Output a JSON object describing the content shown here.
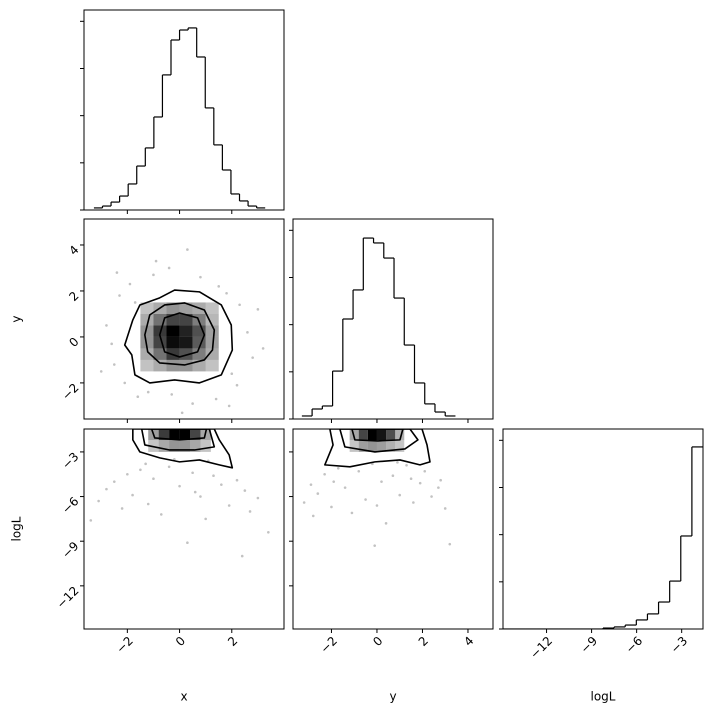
{
  "chart_data": [
    {
      "type": "histogram",
      "color": "#000000",
      "bins": [
        -3.28,
        -2.952,
        -2.624,
        -2.296,
        -1.968,
        -1.64,
        -1.312,
        -0.984,
        -0.656,
        -0.328,
        0,
        0.328,
        0.656,
        0.984,
        1.312,
        1.64,
        1.968,
        2.296,
        2.624,
        2.952,
        3.28
      ],
      "values": [
        11,
        21,
        42,
        74,
        138,
        233,
        329,
        493,
        716,
        901,
        954,
        965,
        811,
        541,
        345,
        212,
        85,
        48,
        21,
        11
      ],
      "xlim": [
        -3.66,
        4.0
      ],
      "ylim": [
        0,
        1060
      ],
      "xticks": [
        -2,
        0,
        2
      ],
      "yticks": [
        0,
        250,
        500,
        750,
        1000
      ]
    },
    {
      "type": "scatter",
      "color": "#000000",
      "ylabel": "y",
      "x": [
        -2.8,
        -2.5,
        -2.3,
        -2.6,
        -1.9,
        -2.1,
        -1.6,
        -1.0,
        -0.4,
        0.3,
        0.8,
        1.5,
        2.3,
        2.6,
        2.8,
        2.2,
        1.4,
        0.5,
        -0.3,
        -1.2,
        3.0,
        -3.0,
        1.9,
        -1.7,
        1.8,
        2.0,
        -2.4,
        0.1,
        3.2,
        -0.9
      ],
      "y": [
        0.5,
        -1.2,
        1.8,
        -0.3,
        2.3,
        -2.0,
        -2.6,
        2.7,
        3.0,
        3.8,
        2.6,
        2.2,
        1.4,
        0.2,
        -0.9,
        -2.1,
        -2.7,
        -2.9,
        -2.5,
        -2.4,
        1.2,
        -1.5,
        -3.0,
        1.5,
        1.9,
        -1.6,
        2.8,
        -3.3,
        -0.5,
        3.3
      ],
      "density": {
        "xbins": [
          -1.5,
          -1.0,
          -0.5,
          0,
          0.5,
          1.0,
          1.5
        ],
        "ybins": [
          -1.5,
          -1.0,
          -0.5,
          0,
          0.5,
          1.0,
          1.5
        ],
        "counts": [
          [
            2,
            4,
            6,
            6,
            4,
            2
          ],
          [
            4,
            9,
            14,
            12,
            8,
            4
          ],
          [
            6,
            13,
            18,
            17,
            11,
            5
          ],
          [
            6,
            14,
            19,
            16,
            12,
            5
          ],
          [
            4,
            9,
            13,
            13,
            8,
            3
          ],
          [
            2,
            4,
            6,
            5,
            4,
            2
          ]
        ]
      },
      "contours": [
        {
          "x": [
            -2.1,
            -1.79,
            -1.52,
            -0.76,
            -0.19,
            0.76,
            1.6,
            1.98,
            2.02,
            1.6,
            0.76,
            -0.19,
            -1.14,
            -1.71,
            -1.83
          ],
          "y": [
            -0.35,
            0.74,
            1.39,
            1.7,
            2.04,
            1.96,
            1.39,
            0.52,
            -0.57,
            -1.65,
            -2.0,
            -1.87,
            -2.0,
            -1.65,
            -0.78
          ]
        },
        {
          "x": [
            -1.33,
            -1.14,
            -0.57,
            0.19,
            0.95,
            1.33,
            1.26,
            0.95,
            0.19,
            -0.76,
            -1.22
          ],
          "y": [
            0.09,
            0.96,
            1.39,
            1.48,
            1.17,
            0.3,
            -0.57,
            -1.0,
            -1.22,
            -1.13,
            -0.65
          ]
        },
        {
          "x": [
            -0.76,
            -0.57,
            0,
            0.69,
            0.95,
            0.69,
            0,
            -0.57
          ],
          "y": [
            0.09,
            0.83,
            1.04,
            0.83,
            0.09,
            -0.65,
            -0.87,
            -0.65
          ]
        }
      ],
      "xlim": [
        -3.66,
        4.0
      ],
      "ylim": [
        -3.57,
        5.13
      ],
      "xticks": [
        -2,
        0,
        2
      ],
      "yticks": [
        {
          "value": -2,
          "label": "−2"
        },
        {
          "value": 0,
          "label": "0"
        },
        {
          "value": 2,
          "label": "2"
        },
        {
          "value": 4,
          "label": "4"
        }
      ]
    },
    {
      "type": "histogram",
      "color": "#000000",
      "bins": [
        -3.3,
        -2.85,
        -2.4,
        -1.95,
        -1.5,
        -1.05,
        -0.6,
        -0.15,
        0.3,
        0.75,
        1.2,
        1.65,
        2.1,
        2.55,
        3.0,
        3.45
      ],
      "values": [
        16,
        53,
        69,
        254,
        530,
        684,
        959,
        933,
        853,
        641,
        392,
        191,
        80,
        37,
        16
      ],
      "xlim": [
        -3.69,
        5.1
      ],
      "ylim": [
        0,
        1060
      ],
      "xticks": [
        -2,
        0,
        2,
        4
      ],
      "yticks": [
        0,
        250,
        500,
        750,
        1000
      ]
    },
    {
      "type": "scatter",
      "color": "#000000",
      "xlabel": "x",
      "ylabel": "logL",
      "x": [
        -3.1,
        -2.8,
        -2.5,
        -2.2,
        -2.0,
        -1.8,
        -1.5,
        -1.2,
        -1.0,
        -0.7,
        -0.4,
        0,
        0.3,
        0.5,
        0.8,
        1.0,
        1.3,
        1.6,
        1.9,
        2.2,
        2.5,
        2.7,
        3.0,
        3.4,
        -3.4,
        1.1,
        -1.3,
        2.4,
        -0.2,
        0.6
      ],
      "y": [
        -6.3,
        -5.5,
        -5.0,
        -6.8,
        -4.5,
        -5.9,
        -4.2,
        -6.5,
        -4.8,
        -7.2,
        -4.0,
        -5.3,
        -9.1,
        -4.4,
        -6.0,
        -7.5,
        -4.6,
        -5.2,
        -6.6,
        -4.9,
        -5.6,
        -7.0,
        -6.1,
        -8.4,
        -7.6,
        -3.6,
        -3.8,
        -10.0,
        -3.5,
        -5.7
      ],
      "density": {
        "xbins": [
          -1.2,
          -0.8,
          -0.4,
          0,
          0.4,
          0.8,
          1.2
        ],
        "ybins": [
          -3.0,
          -2.2,
          -1.46
        ],
        "counts": [
          [
            2,
            5,
            7,
            7,
            5,
            2
          ],
          [
            6,
            16,
            22,
            22,
            15,
            5
          ]
        ]
      },
      "contours": [
        {
          "x": [
            -1.79,
            -1.79,
            -1.52,
            -0.76,
            0,
            0.76,
            1.52,
            2.02,
            1.9,
            1.52,
            1.33
          ],
          "y": [
            -1.46,
            -2.19,
            -3.0,
            -3.4,
            -3.67,
            -3.54,
            -3.87,
            -4.07,
            -3.2,
            -2.19,
            -1.46
          ]
        },
        {
          "x": [
            -1.45,
            -1.33,
            -0.38,
            0.57,
            1.33,
            1.14
          ],
          "y": [
            -1.46,
            -2.53,
            -2.87,
            -2.87,
            -2.66,
            -1.46
          ]
        },
        {
          "x": [
            -1.07,
            -0.95,
            0,
            0.95,
            1.03
          ],
          "y": [
            -1.46,
            -2.06,
            -2.19,
            -2.06,
            -1.46
          ]
        }
      ],
      "xlim": [
        -3.66,
        4.0
      ],
      "ylim": [
        -14.9,
        -1.46
      ],
      "xticks": [
        {
          "value": -2,
          "label": "−2"
        },
        {
          "value": 0,
          "label": "0"
        },
        {
          "value": 2,
          "label": "2"
        }
      ],
      "yticks": [
        {
          "value": -12,
          "label": "−12"
        },
        {
          "value": -9,
          "label": "−9"
        },
        {
          "value": -6,
          "label": "−6"
        },
        {
          "value": -3,
          "label": "−3"
        }
      ]
    },
    {
      "type": "scatter",
      "color": "#000000",
      "xlabel": "y",
      "x": [
        -3.2,
        -2.9,
        -2.6,
        -2.3,
        -2.0,
        -1.7,
        -1.4,
        -1.1,
        -0.8,
        -0.5,
        -0.2,
        0.2,
        0.4,
        0.7,
        1.0,
        1.3,
        1.6,
        1.9,
        2.1,
        2.4,
        2.7,
        3.0,
        3.2,
        -0.1,
        1.5,
        -1.9,
        0.9,
        2.8,
        -2.8,
        0.0
      ],
      "y": [
        -6.4,
        -5.2,
        -5.8,
        -4.5,
        -6.7,
        -4.1,
        -5.4,
        -7.1,
        -4.3,
        -6.2,
        -3.8,
        -5.0,
        -7.8,
        -4.6,
        -5.9,
        -3.9,
        -6.4,
        -5.1,
        -4.3,
        -6.0,
        -5.4,
        -6.8,
        -9.2,
        -9.3,
        -4.8,
        -5.0,
        -3.7,
        -4.9,
        -7.3,
        -6.6
      ],
      "density": {
        "xbins": [
          -1.2,
          -0.8,
          -0.4,
          0,
          0.4,
          0.8,
          1.2
        ],
        "ybins": [
          -3.0,
          -2.2,
          -1.46
        ],
        "counts": [
          [
            2,
            6,
            7,
            6,
            4,
            2
          ],
          [
            5,
            15,
            22,
            20,
            14,
            4
          ]
        ]
      },
      "contours": [
        {
          "x": [
            -2.07,
            -1.93,
            -2.29,
            -1.19,
            -0.09,
            1.01,
            1.89,
            2.33,
            2.2,
            1.98
          ],
          "y": [
            -1.46,
            -2.53,
            -3.87,
            -4.0,
            -3.67,
            -3.54,
            -3.87,
            -3.67,
            -2.53,
            -1.46
          ]
        },
        {
          "x": [
            -1.63,
            -1.41,
            -0.09,
            1.23,
            1.8,
            1.45
          ],
          "y": [
            -1.46,
            -2.66,
            -3.0,
            -2.8,
            -2.19,
            -1.46
          ]
        },
        {
          "x": [
            -1.1,
            -0.97,
            0.04,
            1.01,
            1.14
          ],
          "y": [
            -1.46,
            -2.19,
            -2.26,
            -2.19,
            -1.46
          ]
        }
      ],
      "xlim": [
        -3.69,
        5.1
      ],
      "ylim": [
        -14.9,
        -1.46
      ],
      "xticks": [
        {
          "value": -2,
          "label": "−2"
        },
        {
          "value": 0,
          "label": "0"
        },
        {
          "value": 2,
          "label": "2"
        },
        {
          "value": 4,
          "label": "4"
        }
      ],
      "yticks": [
        -12,
        -9,
        -6,
        -3
      ]
    },
    {
      "type": "histogram",
      "color": "#000000",
      "xlabel": "logL",
      "bins": [
        -14.9,
        -14.16,
        -13.42,
        -12.68,
        -11.94,
        -11.2,
        -10.46,
        -9.72,
        -8.98,
        -8.24,
        -7.5,
        -6.76,
        -6.02,
        -5.28,
        -4.54,
        -3.8,
        -3.06,
        -2.32,
        -1.58
      ],
      "values": [
        0,
        0,
        0,
        0,
        0,
        0,
        0,
        0,
        0,
        5,
        11,
        21,
        48,
        80,
        143,
        254,
        493,
        965
      ],
      "xlim": [
        -14.9,
        -1.58
      ],
      "ylim": [
        0,
        1060
      ],
      "xticks": [
        {
          "value": -12,
          "label": "−12"
        },
        {
          "value": -9,
          "label": "−9"
        },
        {
          "value": -6,
          "label": "−6"
        },
        {
          "value": -3,
          "label": "−3"
        }
      ],
      "yticks": [
        0,
        250,
        500,
        750,
        1000
      ]
    }
  ]
}
